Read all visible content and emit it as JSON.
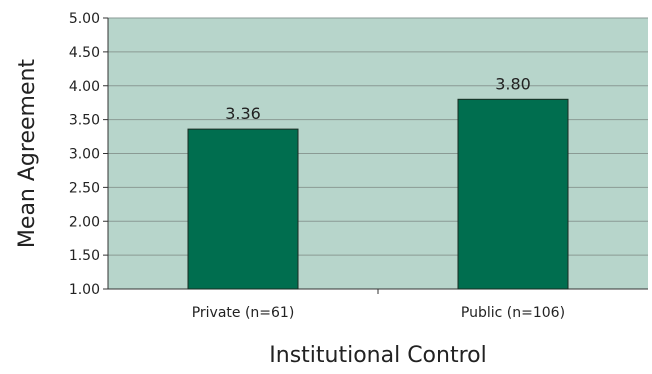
{
  "chart_data": {
    "type": "bar",
    "categories": [
      "Private (n=61)",
      "Public (n=106)"
    ],
    "values": [
      3.36,
      3.8
    ],
    "data_labels": [
      "3.36",
      "3.80"
    ],
    "xlabel": "Institutional Control",
    "ylabel": "Mean Agreement",
    "ylim": [
      1.0,
      5.0
    ],
    "yticks": [
      1.0,
      1.5,
      2.0,
      2.5,
      3.0,
      3.5,
      4.0,
      4.5,
      5.0
    ],
    "ytick_labels": [
      "1.00",
      "1.50",
      "2.00",
      "2.50",
      "3.00",
      "3.50",
      "4.00",
      "4.50",
      "5.00"
    ],
    "grid": true,
    "legend": "none",
    "colors": {
      "plot_background": "#b7d5cb",
      "bar_fill": "#006e4f",
      "bar_stroke": "#1a2a22",
      "gridline": "#8a9a94",
      "axis": "#333333"
    }
  }
}
